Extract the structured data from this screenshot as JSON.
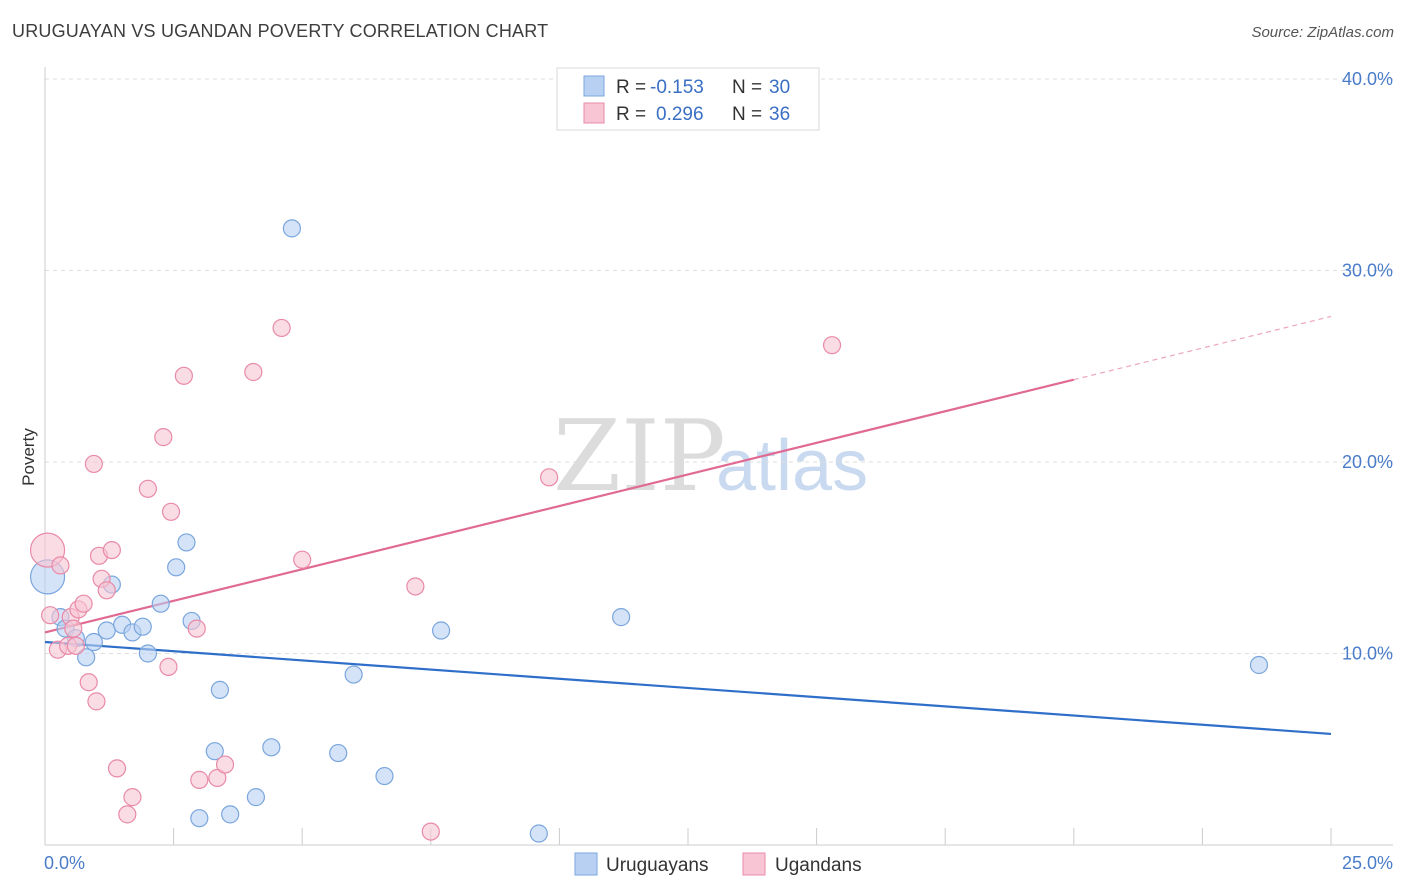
{
  "title": "URUGUAYAN VS UGANDAN POVERTY CORRELATION CHART",
  "source": "Source: ZipAtlas.com",
  "watermark": {
    "zip": "ZIP",
    "atlas": "atlas"
  },
  "colors": {
    "blue_fill": "#b8d1f2",
    "blue_stroke": "#7aa6dd",
    "blue_line": "#2f6fc9",
    "pink_fill": "#f7c5d3",
    "pink_stroke": "#e98aa8",
    "pink_line": "#e06a92",
    "grid": "#dddddd",
    "axis": "#cccccc"
  },
  "legend": {
    "rows": [
      {
        "r_label": "R =",
        "r_value": "-0.153",
        "n_label": "N =",
        "n_value": "30"
      },
      {
        "r_label": "R =",
        "r_value": "0.296",
        "n_label": "N =",
        "n_value": "36"
      }
    ]
  },
  "bottom_legend": [
    "Uruguayans",
    "Ugandans"
  ],
  "chart_data": {
    "type": "scatter",
    "title": "URUGUAYAN VS UGANDAN POVERTY CORRELATION CHART",
    "xlabel": "",
    "ylabel": "Poverty",
    "xlim": [
      0,
      25
    ],
    "ylim": [
      0,
      40
    ],
    "x_tick_labels": [
      "0.0%",
      "25.0%"
    ],
    "y_ticks": [
      10,
      20,
      30,
      40
    ],
    "y_tick_labels": [
      "10.0%",
      "20.0%",
      "30.0%",
      "40.0%"
    ],
    "series": [
      {
        "name": "Uruguayans",
        "color": "blue",
        "trend": {
          "x0": 0,
          "y0": 10.6,
          "x1": 25,
          "y1": 5.8,
          "solid_to": 25
        },
        "points": [
          {
            "x": 0.05,
            "y": 14.0,
            "big": true
          },
          {
            "x": 0.3,
            "y": 11.9
          },
          {
            "x": 0.4,
            "y": 11.3
          },
          {
            "x": 0.6,
            "y": 10.8
          },
          {
            "x": 0.8,
            "y": 9.8
          },
          {
            "x": 0.95,
            "y": 10.6
          },
          {
            "x": 1.2,
            "y": 11.2
          },
          {
            "x": 1.3,
            "y": 13.6
          },
          {
            "x": 1.5,
            "y": 11.5
          },
          {
            "x": 1.7,
            "y": 11.1
          },
          {
            "x": 1.9,
            "y": 11.4
          },
          {
            "x": 2.0,
            "y": 10.0
          },
          {
            "x": 2.25,
            "y": 12.6
          },
          {
            "x": 2.55,
            "y": 14.5
          },
          {
            "x": 2.75,
            "y": 15.8
          },
          {
            "x": 2.85,
            "y": 11.7
          },
          {
            "x": 3.0,
            "y": 1.4
          },
          {
            "x": 3.3,
            "y": 4.9
          },
          {
            "x": 3.4,
            "y": 8.1
          },
          {
            "x": 3.6,
            "y": 1.6
          },
          {
            "x": 4.1,
            "y": 2.5
          },
          {
            "x": 4.4,
            "y": 5.1
          },
          {
            "x": 4.8,
            "y": 32.2
          },
          {
            "x": 5.7,
            "y": 4.8
          },
          {
            "x": 6.0,
            "y": 8.9
          },
          {
            "x": 6.6,
            "y": 3.6
          },
          {
            "x": 7.7,
            "y": 11.2
          },
          {
            "x": 9.6,
            "y": 0.6
          },
          {
            "x": 11.2,
            "y": 11.9
          },
          {
            "x": 23.6,
            "y": 9.4
          }
        ]
      },
      {
        "name": "Ugandans",
        "color": "pink",
        "trend": {
          "x0": 0,
          "y0": 11.1,
          "x1": 25,
          "y1": 27.6,
          "solid_to": 20
        },
        "points": [
          {
            "x": 0.05,
            "y": 15.4,
            "big": true
          },
          {
            "x": 0.1,
            "y": 12.0
          },
          {
            "x": 0.25,
            "y": 10.2
          },
          {
            "x": 0.3,
            "y": 14.6
          },
          {
            "x": 0.45,
            "y": 10.4
          },
          {
            "x": 0.5,
            "y": 11.9
          },
          {
            "x": 0.55,
            "y": 11.3
          },
          {
            "x": 0.6,
            "y": 10.4
          },
          {
            "x": 0.65,
            "y": 12.3
          },
          {
            "x": 0.75,
            "y": 12.6
          },
          {
            "x": 0.85,
            "y": 8.5
          },
          {
            "x": 0.95,
            "y": 19.9
          },
          {
            "x": 1.0,
            "y": 7.5
          },
          {
            "x": 1.05,
            "y": 15.1
          },
          {
            "x": 1.1,
            "y": 13.9
          },
          {
            "x": 1.2,
            "y": 13.3
          },
          {
            "x": 1.3,
            "y": 15.4
          },
          {
            "x": 1.4,
            "y": 4.0
          },
          {
            "x": 1.6,
            "y": 1.6
          },
          {
            "x": 1.7,
            "y": 2.5
          },
          {
            "x": 2.0,
            "y": 18.6
          },
          {
            "x": 2.3,
            "y": 21.3
          },
          {
            "x": 2.4,
            "y": 9.3
          },
          {
            "x": 2.45,
            "y": 17.4
          },
          {
            "x": 2.7,
            "y": 24.5
          },
          {
            "x": 2.95,
            "y": 11.3
          },
          {
            "x": 3.0,
            "y": 3.4
          },
          {
            "x": 3.35,
            "y": 3.5
          },
          {
            "x": 3.5,
            "y": 4.2
          },
          {
            "x": 4.05,
            "y": 24.7
          },
          {
            "x": 4.6,
            "y": 27.0
          },
          {
            "x": 5.0,
            "y": 14.9
          },
          {
            "x": 7.2,
            "y": 13.5
          },
          {
            "x": 7.5,
            "y": 0.7
          },
          {
            "x": 9.8,
            "y": 19.2
          },
          {
            "x": 15.3,
            "y": 26.1
          }
        ]
      }
    ]
  }
}
